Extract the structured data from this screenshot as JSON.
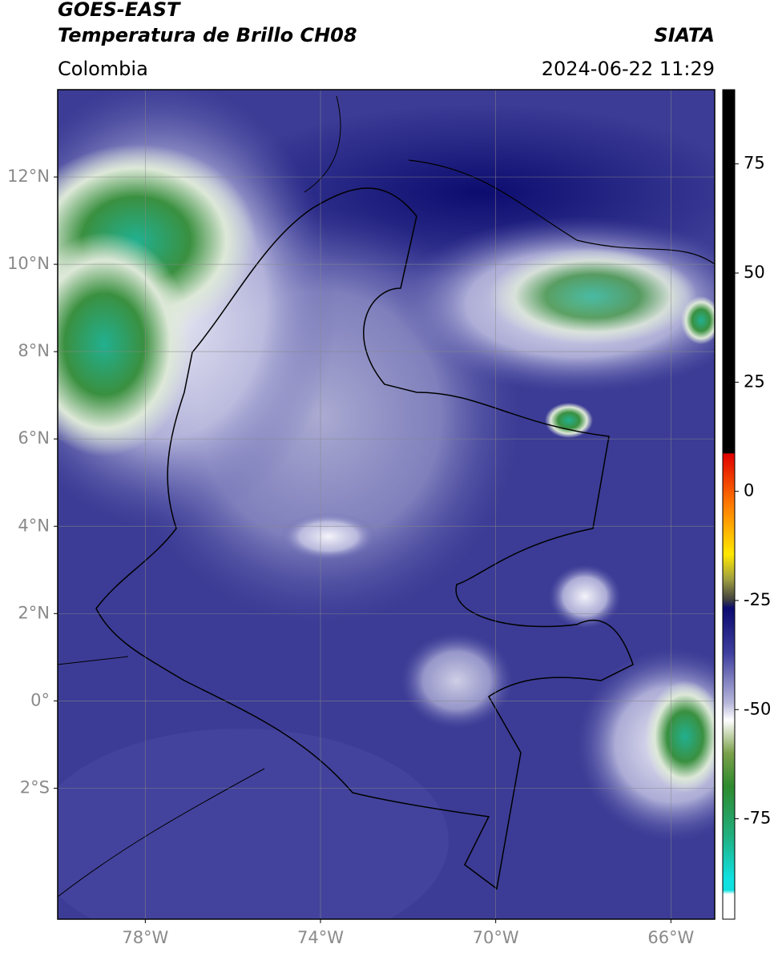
{
  "header": {
    "satellite": "GOES-EAST",
    "product": "Temperatura de Brillo CH08",
    "source": "SIATA",
    "region": "Colombia",
    "datetime": "2024-06-22 11:29"
  },
  "map": {
    "xlim": [
      -80,
      -65
    ],
    "ylim": [
      -5,
      14
    ],
    "xticks": [
      {
        "value": -78,
        "label": "78°W"
      },
      {
        "value": -74,
        "label": "74°W"
      },
      {
        "value": -70,
        "label": "70°W"
      },
      {
        "value": -66,
        "label": "66°W"
      }
    ],
    "yticks": [
      {
        "value": 12,
        "label": "12°N"
      },
      {
        "value": 10,
        "label": "10°N"
      },
      {
        "value": 8,
        "label": "8°N"
      },
      {
        "value": 6,
        "label": "6°N"
      },
      {
        "value": 4,
        "label": "4°N"
      },
      {
        "value": 2,
        "label": "2°N"
      },
      {
        "value": 0,
        "label": "0°"
      },
      {
        "value": -2,
        "label": "2°S"
      }
    ],
    "grid": true,
    "colorbar": {
      "lim": [
        -98,
        92
      ],
      "ticks": [
        75,
        50,
        25,
        0,
        -25,
        -50,
        -75
      ]
    }
  }
}
